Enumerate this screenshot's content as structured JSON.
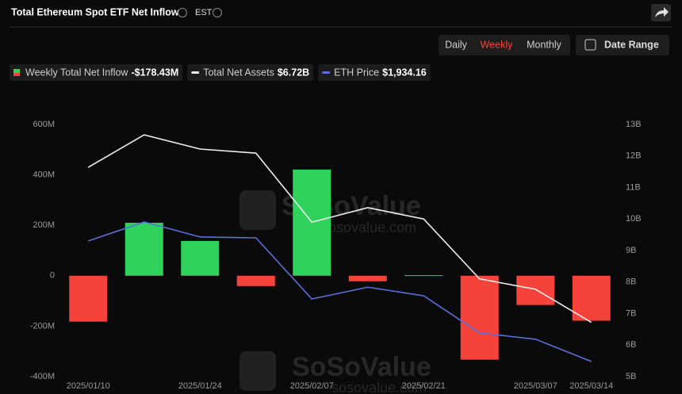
{
  "header": {
    "title": "Total Ethereum Spot ETF Net Inflow",
    "timezone": "EST",
    "tabs": [
      "Daily",
      "Weekly",
      "Monthly"
    ],
    "active_tab": "Weekly",
    "date_range": "Date Range"
  },
  "watermark": {
    "brand": "SoSoValue",
    "site": "sosovalue.com"
  },
  "chart_data": {
    "type": "bar",
    "categories": [
      "2025/01/10",
      null,
      "2025/01/24",
      null,
      "2025/02/07",
      null,
      "2025/02/21",
      null,
      "2025/03/07",
      "2025/03/14"
    ],
    "series": [
      {
        "name": "Weekly Total Net Inflow",
        "latest_label": "-$178.43M",
        "type": "bar",
        "axis": "y",
        "positive_color": "#2fd25a",
        "negative_color": "#f5433b",
        "values": [
          -182,
          210,
          138,
          -41,
          421,
          -22,
          2,
          -333,
          -116,
          -178.43
        ]
      },
      {
        "name": "Total Net Assets",
        "latest_label": "$6.72B",
        "type": "line",
        "axis": "y2",
        "color": "#eeeeee",
        "values": [
          11.64,
          12.67,
          12.22,
          12.09,
          9.9,
          10.36,
          10.0,
          8.1,
          7.77,
          6.72
        ]
      },
      {
        "name": "ETH Price",
        "latest_label": "$1,934.16",
        "type": "line",
        "axis": "y3",
        "color": "#5b6fd8",
        "values": [
          3265,
          3475,
          3310,
          3300,
          2625,
          2755,
          2660,
          2250,
          2180,
          1934.16
        ]
      }
    ],
    "ylim": [
      -400,
      600
    ],
    "yticks": [
      {
        "value": 600,
        "label": "600M"
      },
      {
        "value": 400,
        "label": "400M"
      },
      {
        "value": 200,
        "label": "200M"
      },
      0,
      {
        "value": -200,
        "label": "-200M"
      },
      {
        "value": -400,
        "label": "-400M"
      }
    ],
    "y2lim": [
      5,
      13
    ],
    "y2ticks": [
      {
        "value": 13,
        "label": "13B"
      },
      {
        "value": 12,
        "label": "12B"
      },
      {
        "value": 11,
        "label": "11B"
      },
      {
        "value": 10,
        "label": "10B"
      },
      {
        "value": 9,
        "label": "9B"
      },
      {
        "value": 8,
        "label": "8B"
      },
      {
        "value": 7,
        "label": "7B"
      },
      {
        "value": 6,
        "label": "6B"
      },
      {
        "value": 5,
        "label": "5B"
      }
    ],
    "y3lim": [
      1768,
      4552
    ]
  }
}
